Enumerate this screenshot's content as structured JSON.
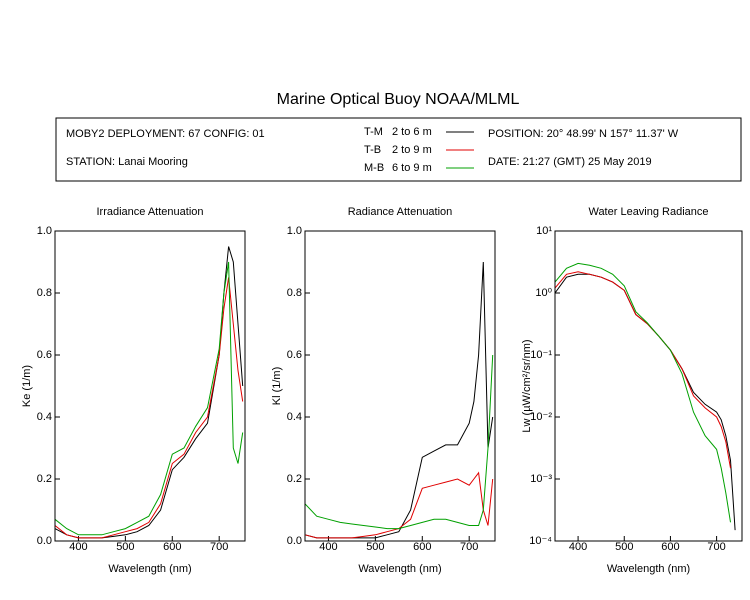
{
  "header": {
    "title": "Marine Optical Buoy NOAA/MLML",
    "deployment": "MOBY2 DEPLOYMENT: 67 CONFIG: 01",
    "station": "STATION: Lanai Mooring",
    "legend_depths": [
      "2 to 6  m",
      "2 to 9  m",
      "6 to 9  m"
    ],
    "position": "POSITION: 20° 48.99' N   157° 11.37' W",
    "date": "DATE: 21:27 (GMT) 25 May 2019"
  },
  "chart_data": [
    {
      "type": "line",
      "title": "Irradiance Attenuation",
      "x_label": "Wavelength (nm)",
      "y_label": "Ke  (1/m)",
      "x": [
        350,
        375,
        400,
        425,
        450,
        475,
        500,
        525,
        550,
        575,
        600,
        625,
        650,
        675,
        700,
        710,
        720,
        730,
        740,
        750
      ],
      "xlim": [
        350,
        755
      ],
      "xticks": [
        400,
        500,
        600,
        700
      ],
      "ylim": [
        0,
        1
      ],
      "yticks": [
        {
          "value": 0,
          "label": "0.0"
        },
        0.2,
        0.4,
        0.6,
        0.8,
        {
          "value": 1,
          "label": "1.0"
        }
      ],
      "log_y": false,
      "series": [
        {
          "name": "T-M",
          "color": "#000000",
          "values": [
            0.04,
            0.02,
            0.01,
            0.01,
            0.01,
            0.015,
            0.02,
            0.03,
            0.05,
            0.1,
            0.23,
            0.27,
            0.33,
            0.38,
            0.6,
            0.8,
            0.95,
            0.9,
            0.7,
            0.5
          ]
        },
        {
          "name": "T-B",
          "color": "#e00000",
          "values": [
            0.05,
            0.02,
            0.01,
            0.01,
            0.01,
            0.02,
            0.03,
            0.04,
            0.06,
            0.12,
            0.25,
            0.28,
            0.35,
            0.4,
            0.6,
            0.75,
            0.85,
            0.7,
            0.55,
            0.45
          ]
        },
        {
          "name": "M-B",
          "color": "#00a000",
          "values": [
            0.07,
            0.04,
            0.02,
            0.02,
            0.02,
            0.03,
            0.04,
            0.06,
            0.08,
            0.15,
            0.28,
            0.3,
            0.37,
            0.43,
            0.62,
            0.8,
            0.9,
            0.3,
            0.25,
            0.35
          ]
        }
      ]
    },
    {
      "type": "line",
      "title": "Radiance Attenuation",
      "x_label": "Wavelength (nm)",
      "y_label": "Kl  (1/m)",
      "x": [
        350,
        375,
        400,
        425,
        450,
        475,
        500,
        525,
        550,
        575,
        600,
        625,
        650,
        675,
        700,
        710,
        720,
        730,
        740,
        750
      ],
      "xlim": [
        350,
        755
      ],
      "xticks": [
        400,
        500,
        600,
        700
      ],
      "ylim": [
        0,
        1
      ],
      "yticks": [
        {
          "value": 0,
          "label": "0.0"
        },
        0.2,
        0.4,
        0.6,
        0.8,
        {
          "value": 1,
          "label": "1.0"
        }
      ],
      "log_y": false,
      "series": [
        {
          "name": "T-M",
          "color": "#000000",
          "values": [
            0.02,
            0.01,
            0.01,
            0.01,
            0.01,
            0.01,
            0.01,
            0.02,
            0.03,
            0.1,
            0.27,
            0.29,
            0.31,
            0.31,
            0.38,
            0.45,
            0.6,
            0.9,
            0.3,
            0.4
          ]
        },
        {
          "name": "T-B",
          "color": "#e00000",
          "values": [
            0.02,
            0.01,
            0.01,
            0.01,
            0.01,
            0.015,
            0.02,
            0.03,
            0.04,
            0.07,
            0.17,
            0.18,
            0.19,
            0.2,
            0.18,
            0.2,
            0.22,
            0.1,
            0.05,
            0.2
          ]
        },
        {
          "name": "M-B",
          "color": "#00a000",
          "values": [
            0.12,
            0.08,
            0.07,
            0.06,
            0.055,
            0.05,
            0.045,
            0.04,
            0.04,
            0.05,
            0.06,
            0.07,
            0.07,
            0.06,
            0.05,
            0.05,
            0.05,
            0.1,
            0.3,
            0.6
          ]
        }
      ]
    },
    {
      "type": "line",
      "title": "Water Leaving Radiance",
      "x_label": "Wavelength (nm)",
      "y_label": "Lw  (µW/cm²/sr/nm)",
      "x": [
        350,
        375,
        400,
        425,
        450,
        475,
        500,
        525,
        550,
        575,
        600,
        625,
        650,
        675,
        700,
        710,
        720,
        730,
        740,
        750
      ],
      "xlim": [
        350,
        755
      ],
      "xticks": [
        400,
        500,
        600,
        700
      ],
      "ylim": [
        0.0001,
        10
      ],
      "yticks": [
        {
          "value": 0.0001,
          "label": "10⁻⁴"
        },
        {
          "value": 0.001,
          "label": "10⁻³"
        },
        {
          "value": 0.01,
          "label": "10⁻²"
        },
        {
          "value": 0.1,
          "label": "10⁻¹"
        },
        {
          "value": 1,
          "label": "10⁰"
        },
        {
          "value": 10,
          "label": "10¹"
        }
      ],
      "log_y": true,
      "series": [
        {
          "name": "T-M",
          "color": "#000000",
          "values": [
            1.0,
            1.8,
            2.0,
            2.0,
            1.8,
            1.5,
            1.1,
            0.45,
            0.32,
            0.2,
            0.12,
            0.06,
            0.025,
            0.016,
            0.012,
            0.009,
            0.005,
            0.002,
            0.00015,
            null
          ]
        },
        {
          "name": "T-B",
          "color": "#e00000",
          "values": [
            1.2,
            2.0,
            2.2,
            2.0,
            1.8,
            1.5,
            1.1,
            0.45,
            0.32,
            0.2,
            0.12,
            0.06,
            0.022,
            0.014,
            0.01,
            0.007,
            0.004,
            0.0015,
            null,
            null
          ]
        },
        {
          "name": "M-B",
          "color": "#00a000",
          "values": [
            1.5,
            2.5,
            3.0,
            2.8,
            2.5,
            2.0,
            1.3,
            0.5,
            0.33,
            0.2,
            0.12,
            0.05,
            0.012,
            0.005,
            0.003,
            0.0015,
            0.0006,
            0.0002,
            null,
            null
          ]
        }
      ]
    }
  ]
}
